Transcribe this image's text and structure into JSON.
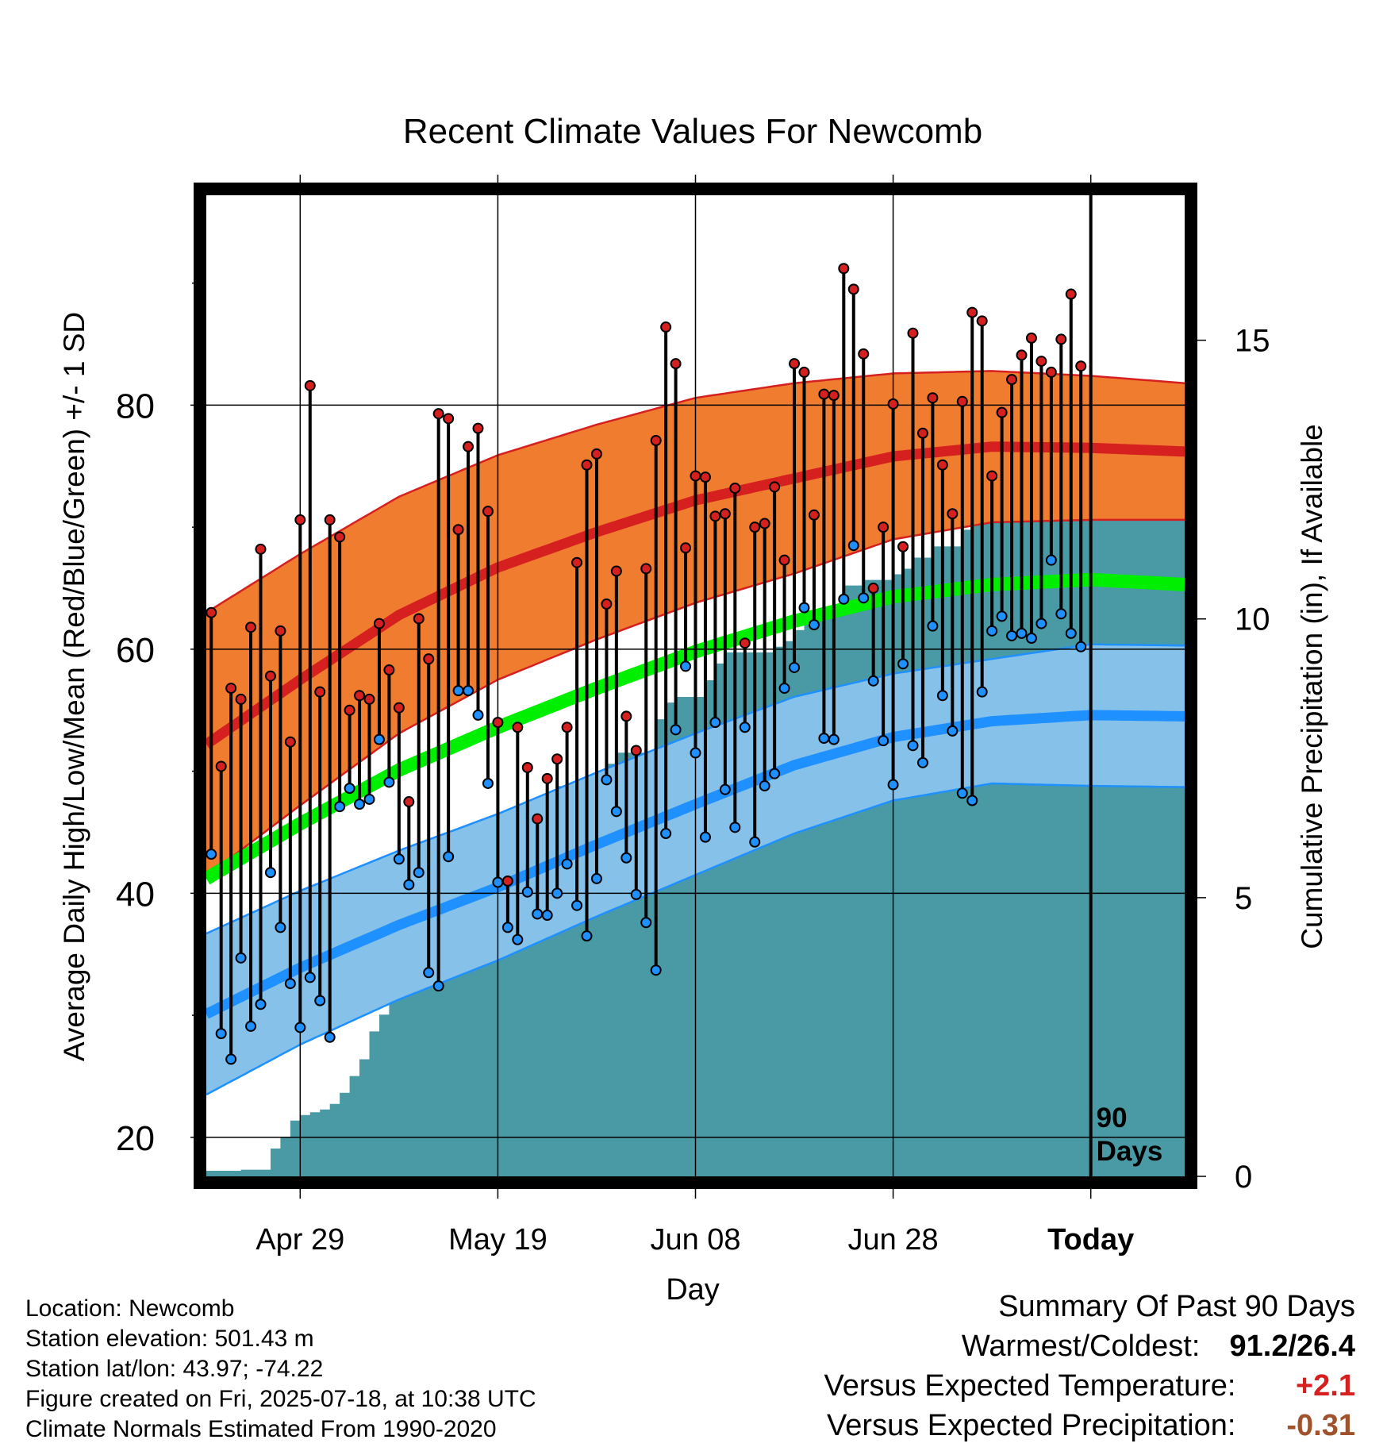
{
  "chart_data": {
    "type": "line",
    "title": "Recent Climate Values For Newcomb",
    "xlabel": "Day",
    "ylabel": "Average Daily High/Low/Mean (Red/Blue/Green) +/- 1 SD",
    "y2label": "Cumulative Precipitation (in), If Available",
    "ylim": [
      16.8,
      97.2
    ],
    "y2lim": [
      0,
      17.6
    ],
    "xlim": [
      -89.5,
      9.5
    ],
    "x_ticks": [
      {
        "x": -80,
        "label": "Apr 29"
      },
      {
        "x": -60,
        "label": "May 19"
      },
      {
        "x": -40,
        "label": "Jun 08"
      },
      {
        "x": -20,
        "label": "Jun 28"
      },
      {
        "x": 0,
        "label": "Today"
      }
    ],
    "y_ticks": [
      20,
      40,
      60,
      80
    ],
    "y_minor_ticks": [
      30,
      50,
      70,
      90
    ],
    "y2_ticks": [
      0,
      5,
      10,
      15
    ],
    "today_label": "90\nDays",
    "grid": true,
    "normals": {
      "x": [
        -89.5,
        -80,
        -70,
        -60,
        -50,
        -40,
        -30,
        -20,
        -10,
        0,
        9.5
      ],
      "high_mean": [
        52.2,
        57.5,
        62.8,
        66.7,
        69.6,
        72.2,
        74.0,
        75.8,
        76.6,
        76.5,
        76.2
      ],
      "high_sd": [
        10.8,
        10.3,
        9.7,
        9.2,
        8.8,
        8.4,
        7.8,
        6.8,
        6.2,
        5.9,
        5.6
      ],
      "mean": [
        41.2,
        45.7,
        50.1,
        53.6,
        56.8,
        59.8,
        62.3,
        64.3,
        65.3,
        65.7,
        65.3
      ],
      "low_mean": [
        30.1,
        33.9,
        37.4,
        40.5,
        44.0,
        47.3,
        50.5,
        52.8,
        54.1,
        54.6,
        54.5
      ],
      "low_sd": [
        6.6,
        6.3,
        6.1,
        6.0,
        5.9,
        5.8,
        5.6,
        5.2,
        5.1,
        5.8,
        5.8
      ]
    },
    "series": [
      {
        "name": "High",
        "color": "#d62020",
        "values": [
          63.0,
          50.4,
          56.8,
          55.9,
          61.8,
          68.2,
          57.8,
          61.5,
          52.4,
          70.6,
          81.6,
          56.5,
          70.6,
          69.2,
          55.0,
          56.2,
          55.9,
          62.1,
          58.3,
          55.2,
          47.5,
          62.5,
          59.2,
          79.3,
          78.9,
          69.8,
          76.6,
          78.1,
          71.3,
          54.0,
          41.0,
          53.6,
          50.3,
          46.1,
          49.4,
          51.0,
          53.6,
          67.1,
          75.1,
          76.0,
          63.7,
          66.4,
          54.5,
          51.7,
          66.6,
          77.1,
          86.4,
          83.4,
          68.3,
          74.2,
          74.1,
          70.9,
          71.1,
          73.2,
          60.5,
          70.0,
          70.3,
          73.3,
          67.3,
          83.4,
          82.7,
          71.0,
          80.9,
          80.8,
          91.2,
          89.5,
          84.2,
          65.0,
          70.0,
          80.1,
          68.4,
          85.9,
          77.7,
          80.6,
          75.1,
          71.1,
          80.3,
          87.6,
          86.9,
          74.2,
          79.4,
          82.1,
          84.1,
          85.5,
          83.6,
          82.7,
          85.4,
          89.1,
          83.2
        ]
      },
      {
        "name": "Low",
        "color": "#1e90ff",
        "values": [
          43.2,
          28.5,
          26.4,
          34.7,
          29.1,
          30.9,
          41.7,
          37.2,
          32.6,
          29.0,
          33.1,
          31.2,
          28.2,
          47.1,
          48.6,
          47.3,
          47.7,
          52.6,
          49.1,
          42.8,
          40.7,
          41.7,
          33.5,
          32.4,
          43.0,
          56.6,
          56.6,
          54.6,
          49.0,
          40.9,
          37.2,
          36.2,
          40.1,
          38.3,
          38.2,
          40.0,
          42.4,
          39.0,
          36.5,
          41.2,
          49.3,
          46.7,
          42.9,
          39.9,
          37.6,
          33.7,
          44.9,
          53.4,
          58.6,
          51.5,
          44.6,
          54.0,
          48.5,
          45.4,
          53.6,
          44.2,
          48.8,
          49.8,
          56.8,
          58.5,
          63.4,
          62.0,
          52.7,
          52.6,
          64.1,
          68.5,
          64.2,
          57.4,
          52.5,
          48.9,
          58.8,
          52.1,
          50.7,
          61.9,
          56.2,
          53.3,
          48.2,
          47.6,
          56.5,
          61.5,
          62.7,
          61.1,
          61.3,
          60.9,
          62.1,
          67.3,
          62.9,
          61.3,
          60.2,
          59.4
        ]
      },
      {
        "name": "Cumulative Precipitation",
        "color": "#4a9aa5",
        "x": [
          -89.5,
          -86,
          -83,
          -82,
          -81,
          -80,
          -79,
          -78,
          -77,
          -76,
          -75,
          -74,
          -73,
          -72,
          -71,
          -70,
          -69,
          -68,
          -67,
          -66,
          -65,
          -64,
          -63,
          -62,
          -61,
          -60,
          -59,
          -58,
          -57,
          -56,
          -55,
          -54,
          -53,
          -52,
          -51,
          -50,
          -49,
          -48,
          -47,
          -46,
          -45,
          -44,
          -43,
          -42,
          -41,
          -40,
          -39,
          -38,
          -37,
          -36,
          -35,
          -34,
          -33,
          -32,
          -31,
          -30,
          -29,
          -28,
          -27,
          -26,
          -25,
          -24,
          -23,
          -22,
          -21,
          -20,
          -19,
          -18,
          -17,
          -16,
          -15,
          -14,
          -13,
          -12,
          -11,
          -10,
          -9,
          -8,
          -7,
          -6,
          -5,
          -4,
          -3,
          -2,
          -1,
          0,
          9.5
        ],
        "values": [
          0.1,
          0.12,
          0.5,
          0.7,
          1.0,
          1.1,
          1.15,
          1.2,
          1.3,
          1.5,
          1.8,
          2.1,
          2.6,
          2.9,
          3.2,
          3.3,
          4.1,
          4.8,
          5.0,
          5.0,
          5.0,
          5.0,
          5.1,
          5.2,
          5.8,
          6.2,
          6.3,
          6.3,
          6.4,
          6.6,
          6.8,
          7.0,
          7.0,
          7.0,
          7.0,
          7.1,
          7.4,
          7.6,
          7.6,
          7.6,
          7.6,
          8.2,
          8.5,
          8.6,
          8.6,
          8.6,
          8.9,
          9.2,
          9.4,
          9.4,
          9.4,
          9.4,
          9.4,
          9.5,
          9.6,
          9.8,
          10.0,
          10.1,
          10.2,
          10.2,
          10.6,
          10.6,
          10.7,
          10.7,
          10.7,
          10.8,
          10.9,
          11.1,
          11.1,
          11.3,
          11.3,
          11.3,
          11.6,
          11.8,
          12.0,
          12.0,
          12.0,
          12.1,
          12.4,
          12.5,
          12.6,
          12.6,
          12.6,
          12.6,
          12.6,
          12.6,
          12.6
        ]
      }
    ]
  },
  "info": {
    "location": "Location: Newcomb",
    "elevation": "Station elevation: 501.43 m",
    "latlon": "Station lat/lon: 43.97; -74.22",
    "created": "Figure created on Fri, 2025-07-18, at 10:38 UTC",
    "normals": "Climate Normals Estimated From 1990-2020"
  },
  "summary": {
    "title": "Summary Of Past 90 Days",
    "warm_cold_label": "Warmest/Coldest:",
    "warm_cold_value": "91.2/26.4",
    "temp_label": "Versus Expected Temperature:",
    "temp_value": "+2.1",
    "temp_color": "#d62020",
    "precip_label": "Versus Expected Precipitation:",
    "precip_value": "-0.31",
    "precip_color": "#a0522d"
  }
}
